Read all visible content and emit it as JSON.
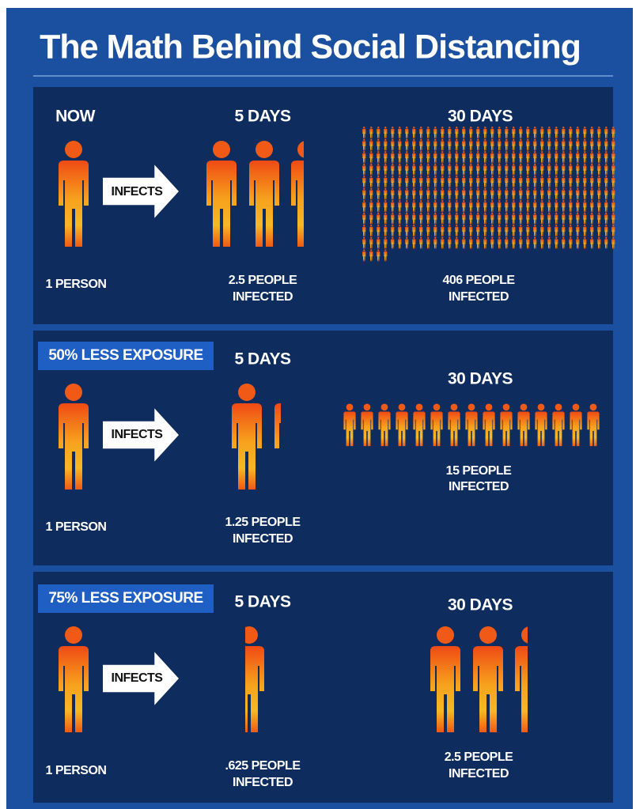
{
  "title": "The Math Behind Social Distancing",
  "panels": [
    {
      "start_label": "NOW",
      "arrow": "INFECTS",
      "start_caption": "1 PERSON",
      "day5_label": "5 DAYS",
      "day5_caption": [
        "2.5 PEOPLE",
        "INFECTED"
      ],
      "day30_label": "30 DAYS",
      "day30_caption": [
        "406 PEOPLE",
        "INFECTED"
      ]
    },
    {
      "exposure": "50% LESS EXPOSURE",
      "arrow": "INFECTS",
      "start_caption": "1 PERSON",
      "day5_label": "5 DAYS",
      "day5_caption": [
        "1.25 PEOPLE",
        "INFECTED"
      ],
      "day30_label": "30 DAYS",
      "day30_caption": [
        "15 PEOPLE",
        "INFECTED"
      ]
    },
    {
      "exposure": "75% LESS EXPOSURE",
      "arrow": "INFECTS",
      "start_caption": "1 PERSON",
      "day5_label": "5 DAYS",
      "day5_caption": [
        ".625 PEOPLE",
        "INFECTED"
      ],
      "day30_label": "30 DAYS",
      "day30_caption": [
        "2.5 PEOPLE",
        "INFECTED"
      ]
    }
  ]
}
